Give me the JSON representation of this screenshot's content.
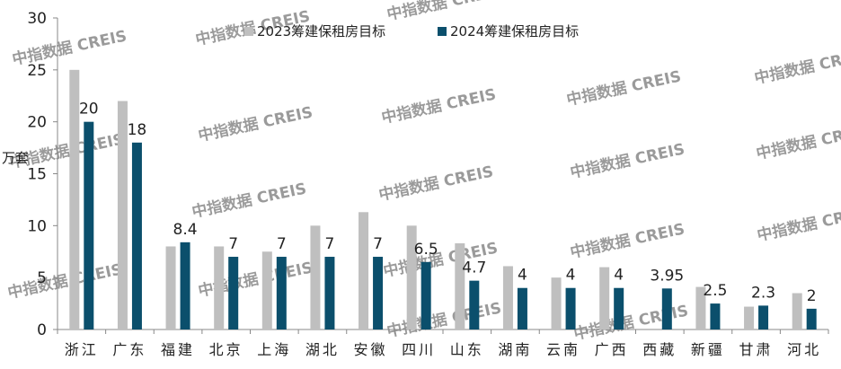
{
  "watermark": "中指数据 CREIS",
  "chart_data": {
    "type": "bar",
    "ylabel": "万套",
    "ylim": [
      0,
      30
    ],
    "yticks": [
      0,
      5,
      10,
      15,
      20,
      25,
      30
    ],
    "grid": false,
    "legend_position": "top",
    "categories": [
      "浙江",
      "广东",
      "福建",
      "北京",
      "上海",
      "湖北",
      "安徽",
      "四川",
      "山东",
      "湖南",
      "云南",
      "广西",
      "西藏",
      "新疆",
      "甘肃",
      "河北"
    ],
    "series": [
      {
        "name": "2023筹建保租房目标",
        "color": "#bfbfbf",
        "values": [
          25,
          22,
          8,
          8,
          7.5,
          10,
          11.3,
          10,
          8.3,
          6.1,
          5,
          6,
          null,
          4.1,
          2.2,
          3.5
        ]
      },
      {
        "name": "2024筹建保租房目标",
        "color": "#0b4f6c",
        "values": [
          20,
          18,
          8.4,
          7,
          7,
          7,
          7,
          6.5,
          4.7,
          4,
          4,
          4,
          3.95,
          2.5,
          2.3,
          2
        ]
      }
    ],
    "data_labels": [
      "20",
      "18",
      "8.4",
      "7",
      "7",
      "7",
      "7",
      "6.5",
      "4.7",
      "4",
      "4",
      "4",
      "3.95",
      "2.5",
      "2.3",
      "2"
    ]
  }
}
